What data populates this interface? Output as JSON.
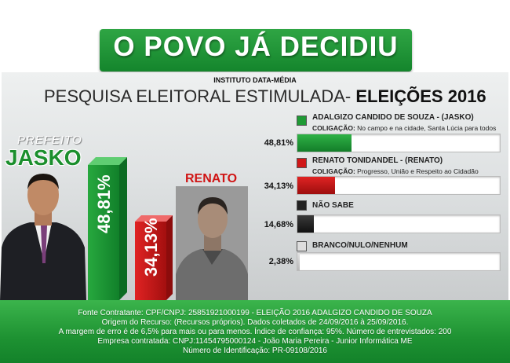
{
  "headline": "O POVO JÁ DECIDIU",
  "institute": "INSTITUTO DATA-MÉDIA",
  "survey_title": "PESQUISA ELEITORAL ESTIMULADA-",
  "survey_year": "ELEIÇÕES 2016",
  "left_panel": {
    "office_label": "PREFEITO",
    "jasko_name": "JASKO",
    "renato_name": "RENATO",
    "jasko_bar_label": "48,81%",
    "renato_bar_label": "34,13%"
  },
  "chart_data": {
    "type": "bar",
    "categories": [
      "ADALGIZO CANDIDO DE SOUZA - (JASKO)",
      "RENATO TONIDANDEL - (RENATO)",
      "NÃO SABE",
      "BRANCO/NULO/NENHUM"
    ],
    "values": [
      48.81,
      34.13,
      14.68,
      2.38
    ],
    "value_labels": [
      "48,81%",
      "34,13%",
      "14,68%",
      "2,38%"
    ],
    "coalition_prefix": "COLIGAÇÃO:",
    "coalitions": [
      "No campo e na cidade, Santa Lúcia para todos",
      "Progresso, União e Respeito ao Cidadão",
      "",
      ""
    ],
    "colors": [
      "#1f9a35",
      "#d01818",
      "#222222",
      "#c8c8c8"
    ]
  },
  "footer": {
    "line1": "Fonte Contratante: CPF/CNPJ: 25851921000199 - ELEIÇÃO 2016 ADALGIZO CANDIDO DE SOUZA",
    "line2": "Origem do Recurso: (Recursos próprios). Dados coletados de 24/09/2016 à 25/09/2016.",
    "line3": "A margem de erro é de 6,5% para mais ou para menos. Índice de confiança: 95%. Número de entrevistados: 200",
    "line4": "Empresa contratada: CNPJ:11454795000124 - João Maria Pereira - Junior Informática ME",
    "line5": "Número de Identificação: PR-09108/2016"
  }
}
